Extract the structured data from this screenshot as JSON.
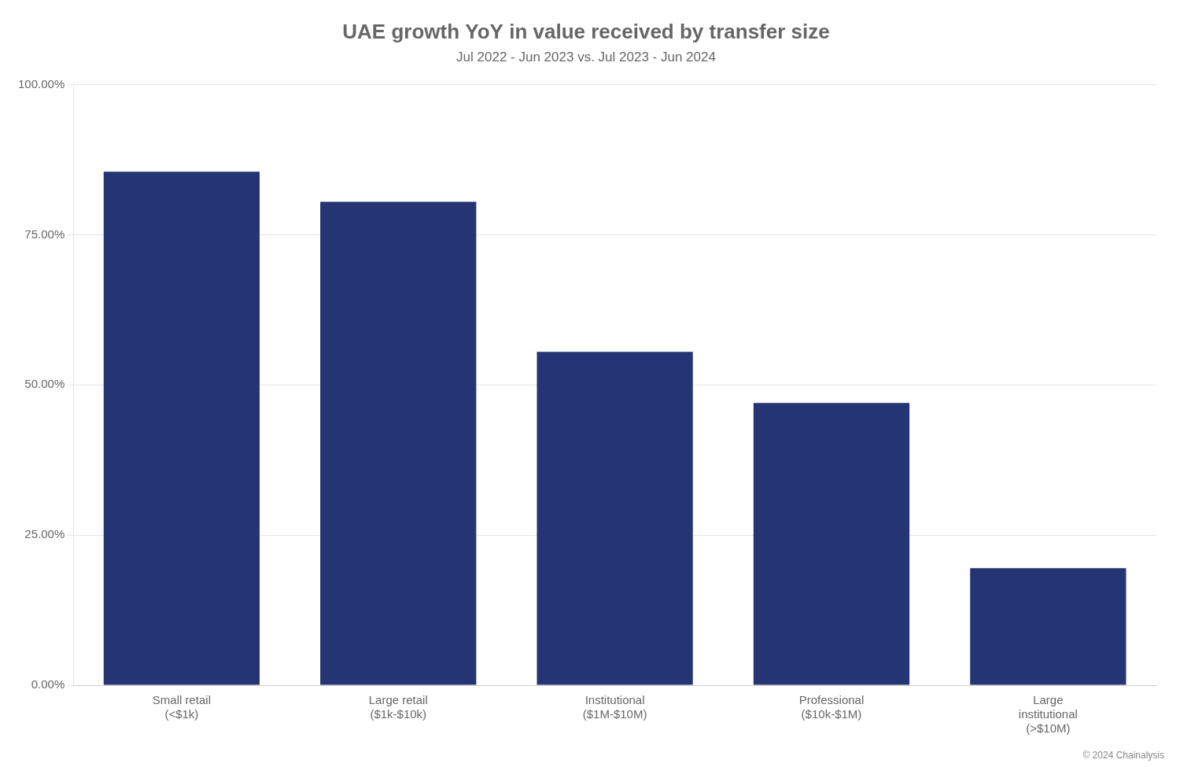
{
  "chart_data": {
    "type": "bar",
    "title": "UAE growth YoY in value received by transfer size",
    "subtitle": "Jul 2022 - Jun 2023 vs. Jul 2023 - Jun 2024",
    "categories": [
      "Small retail\n(<$1k)",
      "Large retail\n($1k-$10k)",
      "Institutional\n($1M-$10M)",
      "Professional\n($10k-$1M)",
      "Large\ninstitutional\n(>$10M)"
    ],
    "values": [
      0.855,
      0.805,
      0.555,
      0.47,
      0.195
    ],
    "color": "#253473",
    "ylim": [
      0,
      1.0
    ],
    "yticks": [
      {
        "value": 0.0,
        "label": "0.00%"
      },
      {
        "value": 0.25,
        "label": "25.00%"
      },
      {
        "value": 0.5,
        "label": "50.00%"
      },
      {
        "value": 0.75,
        "label": "75.00%"
      },
      {
        "value": 1.0,
        "label": "100.00%"
      }
    ],
    "grid": true,
    "annotations": [
      "© 2024 Chainalysis"
    ]
  }
}
